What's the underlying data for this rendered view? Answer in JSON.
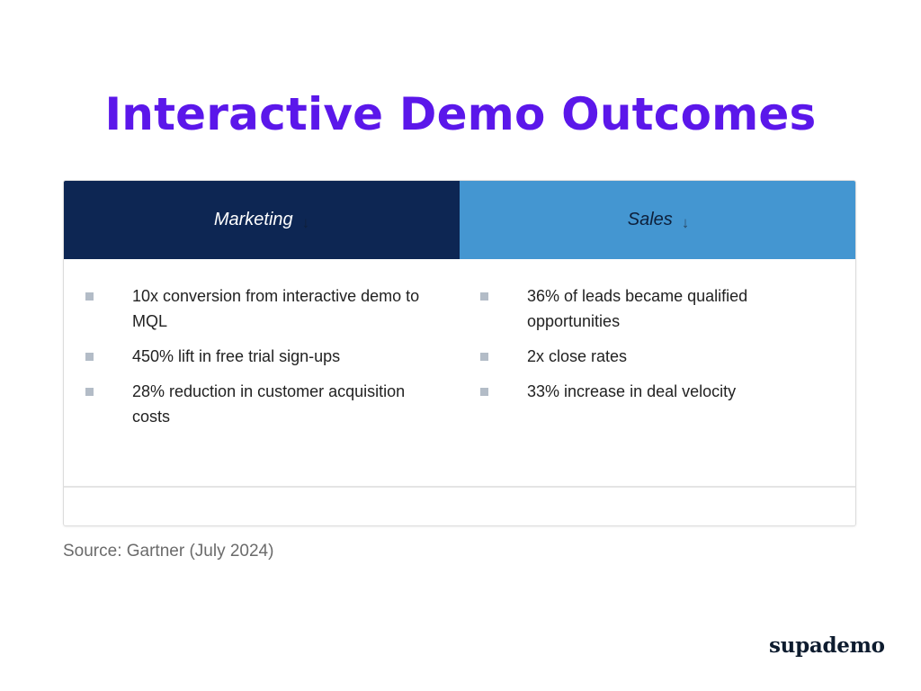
{
  "title": "Interactive Demo Outcomes",
  "colors": {
    "title": "#5b17ea",
    "marketing_header_bg": "#0d2653",
    "sales_header_bg": "#4496d1",
    "bullet": "#b3bcc7"
  },
  "table": {
    "columns": [
      {
        "label": "Marketing",
        "sort_icon": "arrow-down-icon",
        "items": [
          "10x conversion from interactive demo to MQL",
          "450% lift in free trial sign-ups",
          "28% reduction in customer acquisition costs"
        ]
      },
      {
        "label": "Sales",
        "sort_icon": "arrow-down-icon",
        "items": [
          "36% of leads became qualified opportunities",
          "2x close rates",
          "33% increase in deal velocity"
        ]
      }
    ]
  },
  "source": "Source: Gartner (July 2024)",
  "logo": "supademo",
  "glyphs": {
    "arrow": "↓"
  }
}
